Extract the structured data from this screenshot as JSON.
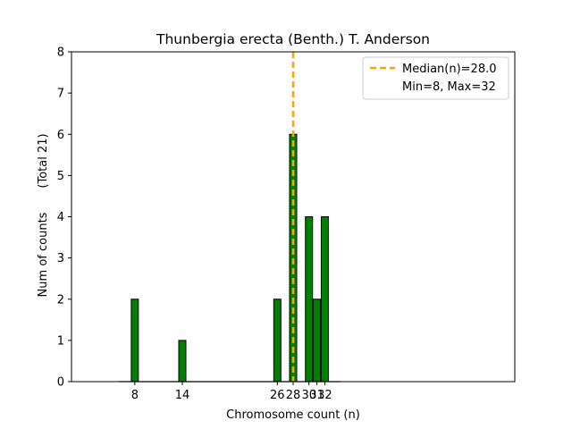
{
  "chart_data": {
    "type": "bar",
    "title": "Thunbergia erecta (Benth.) T. Anderson",
    "xlabel": "Chromosome count (n)",
    "ylabel": "Num of counts",
    "ylabel_total": "(Total 21)",
    "xlim": [
      0,
      56
    ],
    "ylim": [
      0,
      8
    ],
    "yticks": [
      0,
      1,
      2,
      3,
      4,
      5,
      6,
      7,
      8
    ],
    "xticks": [
      8,
      14,
      26,
      28,
      30,
      31,
      32
    ],
    "bars": [
      {
        "x": 8,
        "count": 2
      },
      {
        "x": 14,
        "count": 1
      },
      {
        "x": 26,
        "count": 2
      },
      {
        "x": 28,
        "count": 6
      },
      {
        "x": 30,
        "count": 4
      },
      {
        "x": 31,
        "count": 2
      },
      {
        "x": 32,
        "count": 4
      }
    ],
    "bar_color": "#008000",
    "median": 28.0,
    "median_color": "#ffa500",
    "legend": {
      "position": "upper right",
      "entries": [
        "Median(n)=28.0",
        "Min=8, Max=32"
      ]
    },
    "grid": false
  }
}
